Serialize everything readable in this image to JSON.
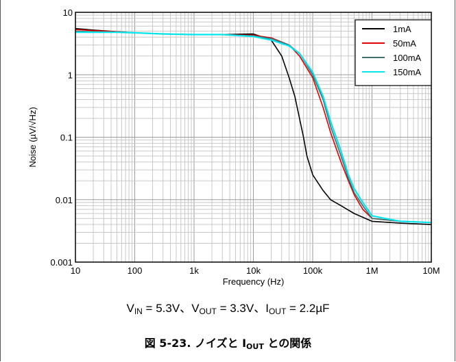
{
  "chart_data": {
    "type": "line",
    "title": "",
    "xlabel": "Frequency (Hz)",
    "ylabel": "Noise (µV/√Hz)",
    "xscale": "log",
    "yscale": "log",
    "xlim": [
      10,
      10000000
    ],
    "ylim": [
      0.001,
      10
    ],
    "grid": true,
    "legend_position": "top-right",
    "x_tick_labels": [
      "10",
      "100",
      "1k",
      "10k",
      "100k",
      "1M",
      "10M"
    ],
    "y_tick_labels": [
      "0.001",
      "0.01",
      "0.1",
      "1",
      "10"
    ],
    "series": [
      {
        "name": "1mA",
        "color": "#000000",
        "x": [
          10,
          20,
          50,
          100,
          300,
          1000,
          3000,
          10000,
          20000,
          30000,
          40000,
          50000,
          60000,
          70000,
          80000,
          100000,
          150000,
          200000,
          300000,
          500000,
          1000000,
          3000000,
          10000000
        ],
        "y": [
          5.5,
          5.2,
          4.9,
          4.7,
          4.5,
          4.4,
          4.4,
          4.5,
          3.6,
          2.0,
          0.9,
          0.45,
          0.2,
          0.1,
          0.05,
          0.025,
          0.014,
          0.01,
          0.008,
          0.006,
          0.0045,
          0.0042,
          0.004
        ]
      },
      {
        "name": "50mA",
        "color": "#e00000",
        "x": [
          10,
          20,
          50,
          100,
          300,
          1000,
          3000,
          10000,
          20000,
          40000,
          60000,
          100000,
          150000,
          200000,
          300000,
          400000,
          500000,
          700000,
          1000000,
          3000000,
          10000000
        ],
        "y": [
          5.3,
          5.1,
          4.9,
          4.7,
          4.5,
          4.4,
          4.4,
          4.3,
          3.9,
          3.0,
          2.0,
          0.9,
          0.3,
          0.12,
          0.04,
          0.02,
          0.012,
          0.007,
          0.005,
          0.0045,
          0.0043
        ]
      },
      {
        "name": "100mA",
        "color": "#3f6f6f",
        "x": [
          10,
          20,
          50,
          100,
          300,
          1000,
          3000,
          10000,
          20000,
          40000,
          60000,
          100000,
          150000,
          200000,
          300000,
          400000,
          500000,
          700000,
          1000000,
          3000000,
          10000000
        ],
        "y": [
          5.0,
          4.9,
          4.8,
          4.7,
          4.5,
          4.4,
          4.4,
          4.2,
          3.8,
          3.0,
          2.2,
          1.0,
          0.4,
          0.15,
          0.05,
          0.022,
          0.013,
          0.008,
          0.005,
          0.0045,
          0.0043
        ]
      },
      {
        "name": "150mA",
        "color": "#00e5ee",
        "x": [
          10,
          20,
          50,
          100,
          300,
          1000,
          3000,
          10000,
          20000,
          40000,
          60000,
          100000,
          150000,
          200000,
          300000,
          400000,
          500000,
          700000,
          1000000,
          3000000,
          10000000
        ],
        "y": [
          4.8,
          4.8,
          4.8,
          4.7,
          4.5,
          4.4,
          4.4,
          4.1,
          3.6,
          2.9,
          2.2,
          1.1,
          0.45,
          0.18,
          0.06,
          0.025,
          0.015,
          0.009,
          0.0055,
          0.0045,
          0.0043
        ]
      }
    ]
  },
  "conditions": {
    "v_in_label": "V",
    "v_in_sub": "IN",
    "v_in_value": " = 5.3V、",
    "v_out_label": "V",
    "v_out_sub": "OUT",
    "v_out_value": " = 3.3V、",
    "i_out_label": "I",
    "i_out_sub": "OUT",
    "i_out_value": " = 2.2µF"
  },
  "caption": {
    "prefix": "図 5-23. ノイズと I",
    "sub": "OUT",
    "suffix": " との関係"
  }
}
